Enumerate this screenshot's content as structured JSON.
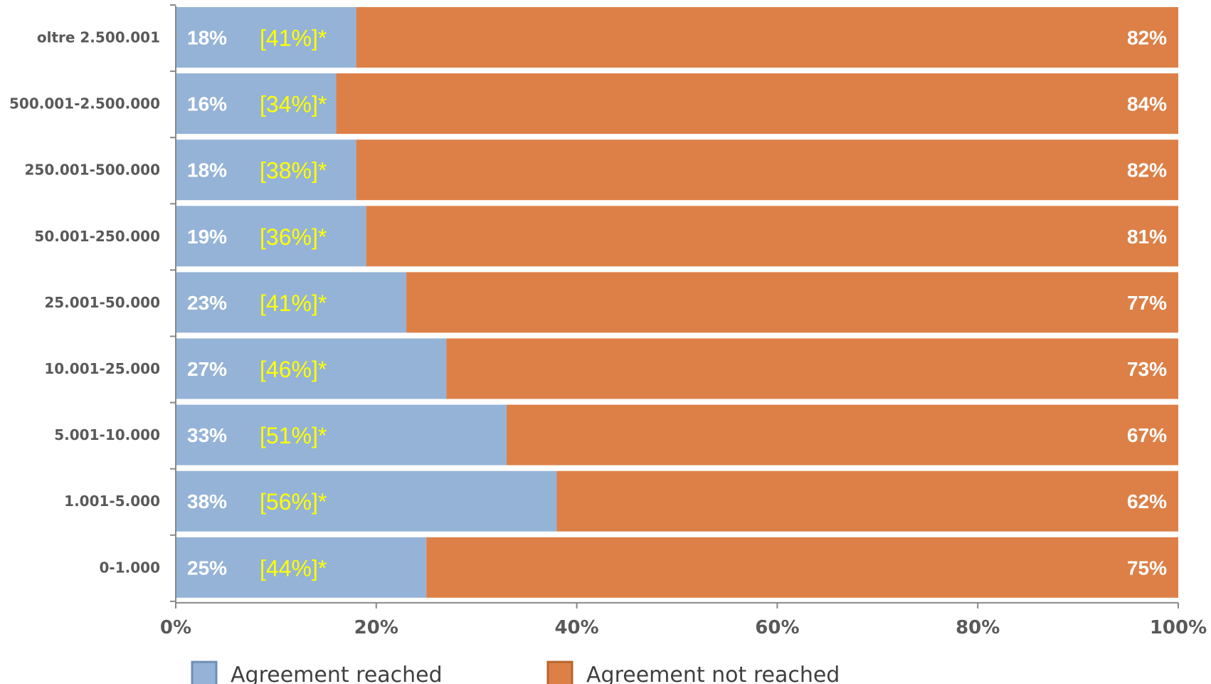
{
  "chart_data": {
    "type": "bar",
    "orientation": "horizontal",
    "stacked": true,
    "percent": true,
    "title": "",
    "xlabel": "",
    "ylabel": "",
    "xlim": [
      0,
      100
    ],
    "xticks": [
      "0%",
      "20%",
      "40%",
      "60%",
      "80%",
      "100%"
    ],
    "grid": false,
    "legend_position": "bottom",
    "categories": [
      "oltre 2.500.001",
      "500.001-2.500.000",
      "250.001-500.000",
      "50.001-250.000",
      "25.001-50.000",
      "10.001-25.000",
      "5.001-10.000",
      "1.001-5.000",
      "0-1.000"
    ],
    "series": [
      {
        "name": "Agreement reached",
        "color": "#95b3d7",
        "values": [
          18,
          16,
          18,
          19,
          23,
          27,
          33,
          38,
          25
        ],
        "labels": [
          "18%",
          "16%",
          "18%",
          "19%",
          "23%",
          "27%",
          "33%",
          "38%",
          "25%"
        ]
      },
      {
        "name": "Agreement not reached",
        "color": "#dd8047",
        "values": [
          82,
          84,
          82,
          81,
          77,
          73,
          67,
          62,
          75
        ],
        "labels": [
          "82%",
          "84%",
          "82%",
          "81%",
          "77%",
          "73%",
          "67%",
          "62%",
          "75%"
        ]
      }
    ],
    "annotations": [
      "[41%]*",
      "[34%]*",
      "[38%]*",
      "[36%]*",
      "[41%]*",
      "[46%]*",
      "[51%]*",
      "[56%]*",
      "[44%]*"
    ],
    "annotation_color": "#ffff00"
  }
}
